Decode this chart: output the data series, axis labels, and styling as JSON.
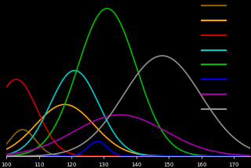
{
  "background_color": "#000000",
  "axes_color": "#ffffff",
  "tick_color": "#ffffff",
  "curves": [
    {
      "color": "#8B6400",
      "mean": 105,
      "std": 4.0,
      "amp": 0.18
    },
    {
      "color": "#FFA500",
      "mean": 118,
      "std": 9.0,
      "amp": 0.35
    },
    {
      "color": "#CC0000",
      "mean": 103,
      "std": 6.5,
      "amp": 0.52
    },
    {
      "color": "#00CCCC",
      "mean": 121,
      "std": 7.5,
      "amp": 0.58
    },
    {
      "color": "#00BB00",
      "mean": 131,
      "std": 9.0,
      "amp": 1.0
    },
    {
      "color": "#0000EE",
      "mean": 128,
      "std": 3.0,
      "amp": 0.1
    },
    {
      "color": "#AA00AA",
      "mean": 135,
      "std": 14.0,
      "amp": 0.28
    },
    {
      "color": "#909090",
      "mean": 148,
      "std": 12.0,
      "amp": 0.68
    }
  ],
  "xmin": 100,
  "xmax": 175,
  "ymin": 0,
  "ymax": 1.05,
  "figsize": [
    3.2,
    2.14
  ],
  "dpi": 100,
  "legend_colors": [
    "#8B6400",
    "#FFA500",
    "#CC0000",
    "#00CCCC",
    "#00BB00",
    "#0000EE",
    "#AA00AA",
    "#909090"
  ]
}
